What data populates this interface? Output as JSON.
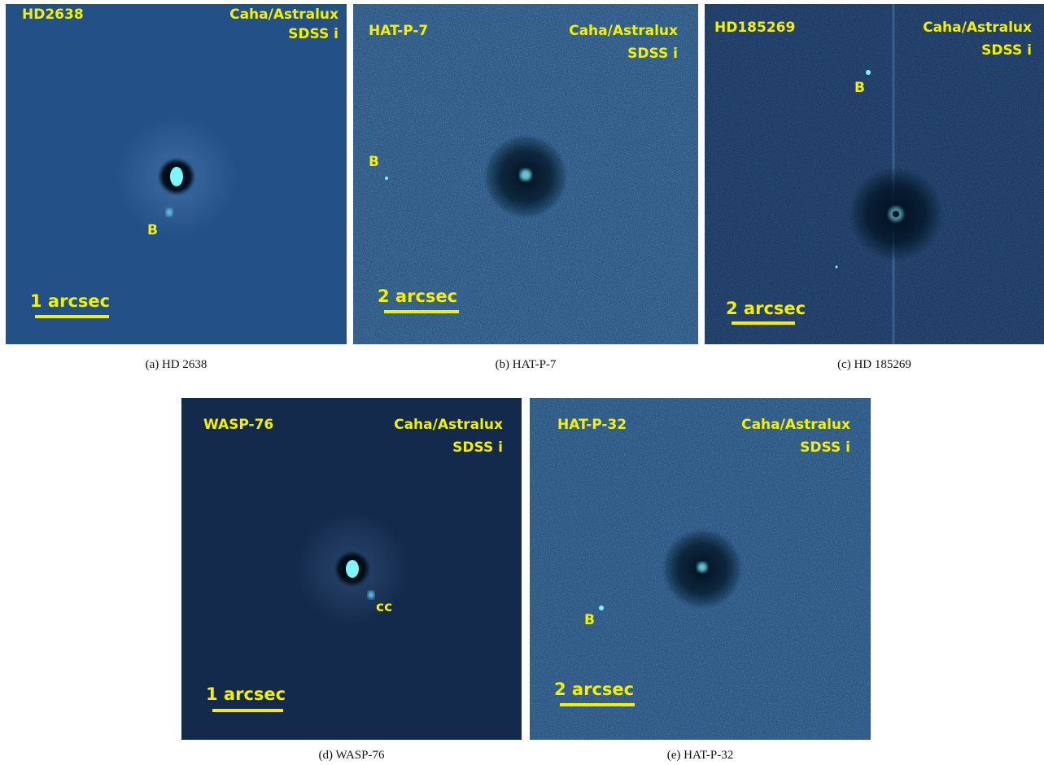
{
  "panels": [
    {
      "target": "HD2638",
      "instrument": "Caha/Astralux",
      "filter": "SDSS i",
      "scale": "1 arcsec",
      "companion": "B",
      "caption": "(a) HD 2638"
    },
    {
      "target": "HAT-P-7",
      "instrument": "Caha/Astralux",
      "filter": "SDSS i",
      "scale": "2 arcsec",
      "companion": "B",
      "caption": "(b) HAT-P-7"
    },
    {
      "target": "HD185269",
      "instrument": "Caha/Astralux",
      "filter": "SDSS i",
      "scale": "2 arcsec",
      "companion": "B",
      "caption": "(c) HD 185269"
    },
    {
      "target": "WASP-76",
      "instrument": "Caha/Astralux",
      "filter": "SDSS i",
      "scale": "1 arcsec",
      "companion": "cc",
      "caption": "(d) WASP-76"
    },
    {
      "target": "HAT-P-32",
      "instrument": "Caha/Astralux",
      "filter": "SDSS i",
      "scale": "2 arcsec",
      "companion": "B",
      "caption": "(e) HAT-P-32"
    }
  ],
  "colors": {
    "label": "#f5f000",
    "panel_a_bg": "#245088",
    "panel_b_bg": "#2b5784",
    "panel_c_bg": "#1c3a63",
    "panel_d_bg": "#142a4c",
    "panel_e_bg": "#2a5583",
    "star": "#7ff5ff"
  }
}
